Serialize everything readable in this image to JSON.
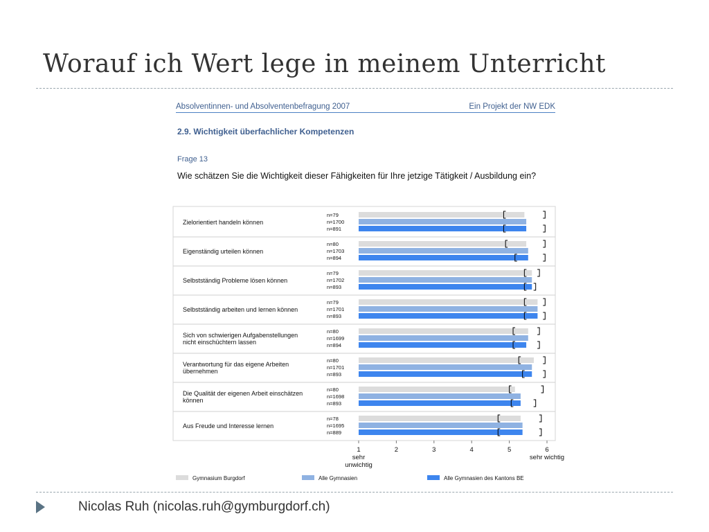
{
  "slide": {
    "title": "Worauf ich Wert lege in meinem Unterricht",
    "footer": "Nicolas Ruh (nicolas.ruh@gymburgdorf.ch)"
  },
  "document": {
    "header_left": "Absolventinnen- und Absolventenbefragung 2007",
    "header_right": "Ein Projekt der NW EDK",
    "section_title": "2.9. Wichtigkeit überfachlicher Kompetenzen",
    "question_number": "Frage 13",
    "question_text": "Wie schätzen Sie die Wichtigkeit dieser Fähigkeiten für Ihre jetzige Tätigkeit / Ausbildung ein?"
  },
  "colors": {
    "gymnasium_burgdorf": "#dcdcdc",
    "alle_gymnasien": "#8fb2e2",
    "alle_kanton_be": "#3d85ee",
    "header_blue": "#3f5f8f"
  },
  "chart_data": {
    "type": "bar",
    "orientation": "horizontal",
    "xlim": [
      1,
      6
    ],
    "x_ticks": [
      "1",
      "2",
      "3",
      "4",
      "5",
      "6"
    ],
    "x_tick_notes": {
      "low": "sehr\nunwichtig",
      "high": "sehr wichtig"
    },
    "categories": [
      "Zielorientiert handeln können",
      "Eigenständig urteilen können",
      "Selbstständig Probleme lösen können",
      "Selbstständig arbeiten und lernen können",
      "Sich von schwierigen Aufgabenstellungen\nnicht einschüchtern lassen",
      "Verantwortung für das eigene Arbeiten\nübernehmen",
      "Die Qualität der eigenen Arbeit einschätzen\nkönnen",
      "Aus Freude und Interesse lernen"
    ],
    "series": [
      {
        "name": "Gymnasium Burgdorf",
        "values": [
          5.4,
          5.45,
          5.6,
          5.75,
          5.5,
          5.65,
          5.15,
          5.3
        ],
        "n": [
          "n=79",
          "n=80",
          "n=79",
          "n=79",
          "n=80",
          "n=80",
          "n=80",
          "n=78"
        ]
      },
      {
        "name": "Alle Gymnasien",
        "values": [
          5.45,
          5.5,
          5.6,
          5.75,
          5.5,
          5.6,
          5.3,
          5.35
        ],
        "n": [
          "n=1700",
          "n=1703",
          "n=1702",
          "n=1701",
          "n=1699",
          "n=1701",
          "n=1698",
          "n=1695"
        ]
      },
      {
        "name": "Alle Gymnasien des Kantons BE",
        "values": [
          5.45,
          5.5,
          5.6,
          5.75,
          5.45,
          5.6,
          5.3,
          5.35
        ],
        "n": [
          "n=891",
          "n=894",
          "n=893",
          "n=893",
          "n=894",
          "n=893",
          "n=893",
          "n=889"
        ]
      }
    ],
    "confidence_intervals": [
      [
        [
          4.85,
          5.95
        ],
        [
          4.9,
          5.95
        ],
        [
          5.4,
          5.8
        ],
        [
          5.4,
          5.95
        ],
        [
          5.1,
          5.8
        ],
        [
          5.25,
          5.95
        ],
        [
          5.0,
          5.9
        ],
        [
          4.7,
          5.85
        ]
      ],
      [
        null,
        null,
        null,
        null,
        null,
        null,
        null,
        null
      ],
      [
        [
          4.85,
          5.95
        ],
        [
          5.15,
          5.95
        ],
        [
          5.4,
          5.7
        ],
        [
          5.4,
          5.95
        ],
        [
          5.1,
          5.8
        ],
        [
          5.35,
          5.95
        ],
        [
          5.05,
          5.7
        ],
        [
          4.7,
          5.85
        ]
      ]
    ]
  }
}
